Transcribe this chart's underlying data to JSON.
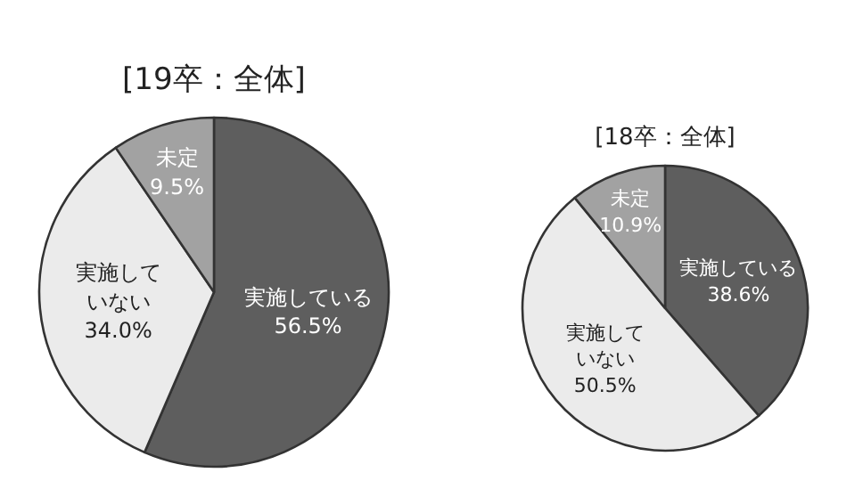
{
  "chart_data": [
    {
      "type": "pie",
      "title": "[19卒：全体]",
      "categories": [
        "実施している",
        "実施していない",
        "未定"
      ],
      "values": [
        56.5,
        34.0,
        9.5
      ],
      "colors": [
        "#5e5e5e",
        "#ebebeb",
        "#a2a2a2"
      ],
      "value_labels": [
        "56.5%",
        "34.0%",
        "9.5%"
      ]
    },
    {
      "type": "pie",
      "title": "[18卒：全体]",
      "categories": [
        "実施している",
        "実施していない",
        "未定"
      ],
      "values": [
        38.6,
        50.5,
        10.9
      ],
      "colors": [
        "#5e5e5e",
        "#ebebeb",
        "#a2a2a2"
      ],
      "value_labels": [
        "38.6%",
        "50.5%",
        "10.9%"
      ]
    }
  ]
}
